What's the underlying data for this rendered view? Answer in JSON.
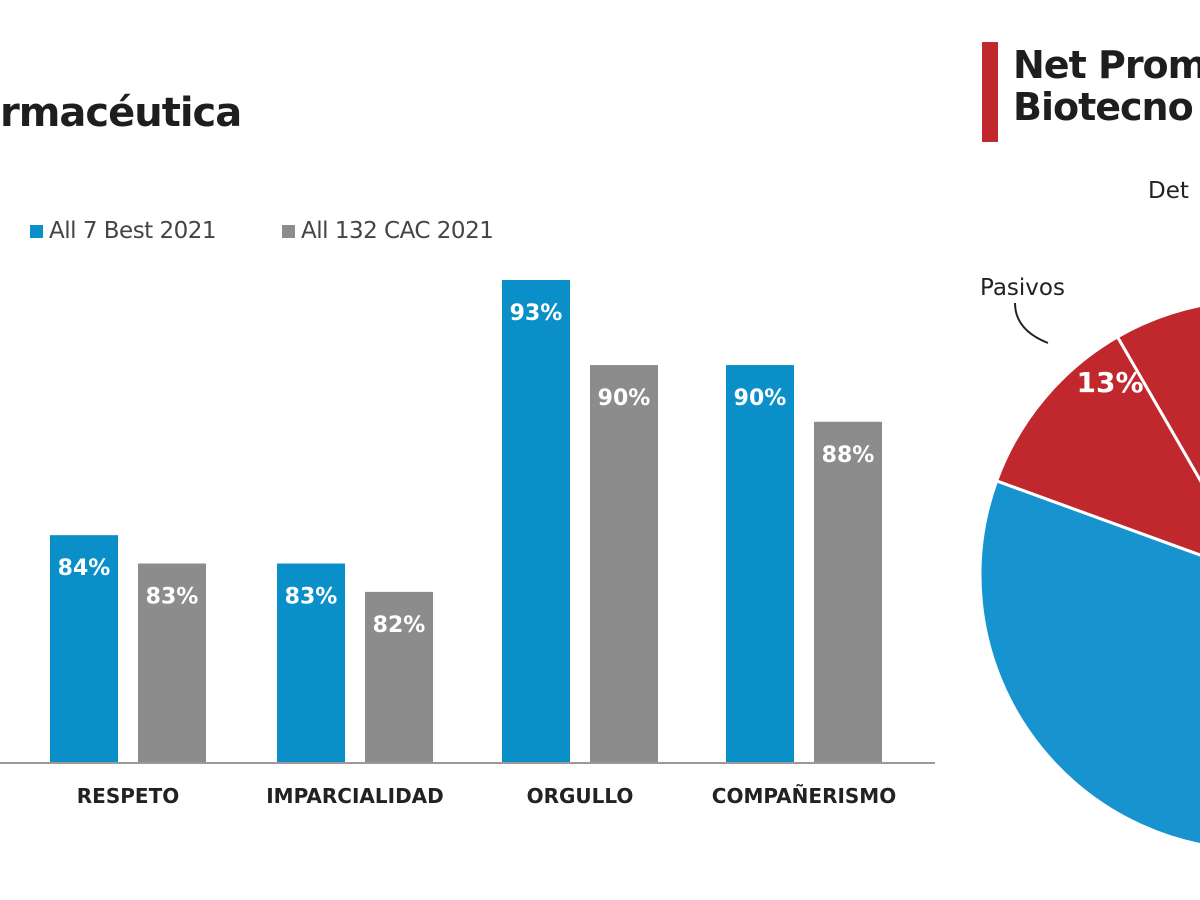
{
  "left_chart": {
    "title_fragment": "rmacéutica",
    "legend": [
      {
        "label": "All 7 Best 2021",
        "color": "#0a8fc9"
      },
      {
        "label": "All 132 CAC 2021",
        "color": "#8c8c8c"
      }
    ]
  },
  "right_chart": {
    "title_line1": "Net Prom",
    "title_line2": "Biotecno",
    "accent_color": "#c0282e",
    "slice_labels": {
      "detractores_fragment": "Det",
      "pasivos": "Pasivos"
    }
  },
  "chart_data": [
    {
      "type": "bar",
      "title": "rmacéutica",
      "categories": [
        "RESPETO",
        "IMPARCIALIDAD",
        "ORGULLO",
        "COMPAÑERISMO"
      ],
      "series": [
        {
          "name": "All 7 Best 2021",
          "color": "#0a8fc9",
          "values": [
            84,
            83,
            93,
            90
          ],
          "labels": [
            "84%",
            "83%",
            "93%",
            "90%"
          ]
        },
        {
          "name": "All 132 CAC 2021",
          "color": "#8c8c8c",
          "values": [
            83,
            82,
            90,
            88
          ],
          "labels": [
            "83%",
            "82%",
            "90%",
            "88%"
          ]
        }
      ],
      "ylim": [
        76,
        95
      ],
      "grid": false,
      "legend_position": "top-left"
    },
    {
      "type": "pie",
      "title": "Net Prom… Biotecno…",
      "slices": [
        {
          "name": "Pasivos",
          "value": 13,
          "label": "13%",
          "color": "#c0282e"
        },
        {
          "name": "Det",
          "color": "#1e1e1e"
        },
        {
          "name": "",
          "color": "#1793cf"
        }
      ]
    }
  ]
}
